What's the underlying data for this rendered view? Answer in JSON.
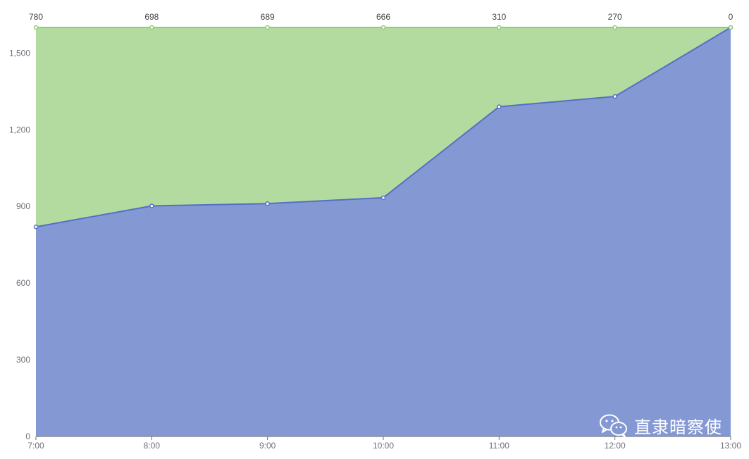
{
  "colors": {
    "upper_area": "#b3db9f",
    "upper_line": "#91cc75",
    "lower_area": "#8499d4",
    "lower_line": "#5470c6",
    "axis": "#6e7079",
    "grid": "#e0e6f1"
  },
  "chart_data": {
    "type": "area",
    "stacked": true,
    "x": [
      "7:00",
      "8:00",
      "9:00",
      "10:00",
      "11:00",
      "12:00",
      "13:00"
    ],
    "series": [
      {
        "values": [
          820,
          902,
          911,
          934,
          1290,
          1330,
          1600
        ]
      },
      {
        "values": [
          780,
          698,
          689,
          666,
          310,
          270,
          0
        ]
      }
    ],
    "series_top_labels": [
      "780",
      "698",
      "689",
      "666",
      "310",
      "270",
      "0"
    ],
    "ylim": [
      0,
      1600
    ],
    "yticks": [
      0,
      300,
      600,
      900,
      1200,
      1500
    ],
    "ytick_labels": [
      "0",
      "300",
      "600",
      "900",
      "1,200",
      "1,500"
    ],
    "xtick_labels": [
      "7:00",
      "8:00",
      "9:00",
      "10:00",
      "11:00",
      "12:00",
      "13:00"
    ],
    "grid": true,
    "legend": "none",
    "title": "",
    "xlabel": "",
    "ylabel": ""
  },
  "watermark": {
    "icon": "wechat-icon",
    "text": "直隶暗察使"
  }
}
